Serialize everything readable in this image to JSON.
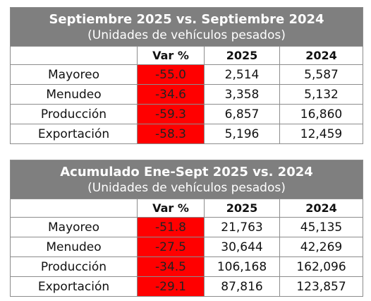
{
  "tables": [
    {
      "title": "Septiembre 2025 vs. Septiembre 2024",
      "subtitle": "(Unidades de vehículos pesados)",
      "columns": [
        "",
        "Var %",
        "2025",
        "2024"
      ],
      "rows": [
        {
          "label": "Mayoreo",
          "var": "-55.0",
          "y2025": "2,514",
          "y2024": "5,587"
        },
        {
          "label": "Menudeo",
          "var": "-34.6",
          "y2025": "3,358",
          "y2024": "5,132"
        },
        {
          "label": "Producción",
          "var": "-59.3",
          "y2025": "6,857",
          "y2024": "16,860"
        },
        {
          "label": "Exportación",
          "var": "-58.3",
          "y2025": "5,196",
          "y2024": "12,459"
        }
      ]
    },
    {
      "title": "Acumulado Ene-Sept 2025 vs. 2024",
      "subtitle": "(Unidades de vehículos pesados)",
      "columns": [
        "",
        "Var %",
        "2025",
        "2024"
      ],
      "rows": [
        {
          "label": "Mayoreo",
          "var": "-51.8",
          "y2025": "21,763",
          "y2024": "45,135"
        },
        {
          "label": "Menudeo",
          "var": "-27.5",
          "y2025": "30,644",
          "y2024": "42,269"
        },
        {
          "label": "Producción",
          "var": "-34.5",
          "y2025": "106,168",
          "y2024": "162,096"
        },
        {
          "label": "Exportación",
          "var": "-29.1",
          "y2025": "87,816",
          "y2024": "123,857"
        }
      ]
    }
  ],
  "colors": {
    "header_bg": "#7f7f7f",
    "var_bg": "#ff0000"
  }
}
